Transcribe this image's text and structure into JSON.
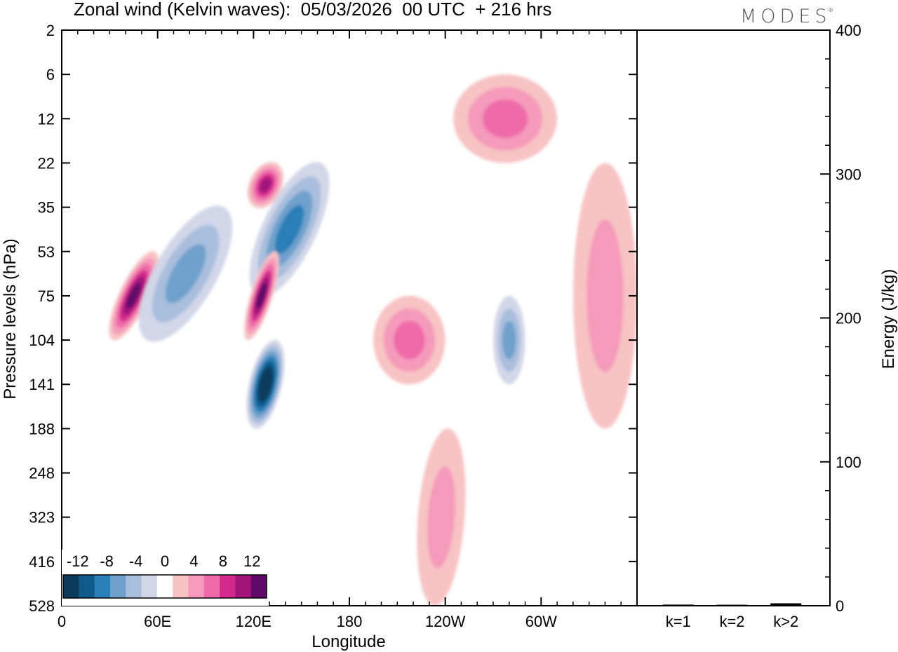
{
  "header": {
    "title": "Zonal wind (Kelvin waves):  05/03/2026  00 UTC  + 216 hrs",
    "brand": "MODES",
    "brand_mark": "®"
  },
  "chart_data": [
    {
      "type": "heatmap",
      "title": "Zonal wind (Kelvin waves):  05/03/2026  00 UTC  + 216 hrs",
      "xlabel": "Longitude",
      "ylabel": "Pressure levels (hPa)",
      "x_ticks": [
        "0",
        "60E",
        "120E",
        "180",
        "120W",
        "60W"
      ],
      "x_tick_degrees": [
        0,
        60,
        120,
        180,
        240,
        300
      ],
      "xlim": [
        0,
        360
      ],
      "y_ticks": [
        "2",
        "6",
        "12",
        "22",
        "35",
        "53",
        "75",
        "104",
        "141",
        "188",
        "248",
        "323",
        "416",
        "528"
      ],
      "y_scale": "model levels (top 2 hPa to bottom 528 hPa)",
      "colorbar": {
        "labels": [
          "-12",
          "-8",
          "-4",
          "0",
          "4",
          "8",
          "12"
        ],
        "bounds": [
          -14,
          -12,
          -10,
          -8,
          -6,
          -4,
          -2,
          2,
          4,
          6,
          8,
          10,
          12,
          14
        ],
        "colors": [
          "#0b3a5b",
          "#0e5a8a",
          "#2a7fb8",
          "#6fa0cc",
          "#a9bedd",
          "#d2d6e8",
          "#ffffff",
          "#f7c3c3",
          "#f59aba",
          "#ee6aa8",
          "#d22a8c",
          "#a1147a",
          "#5e0868"
        ],
        "placement": "bottom-left"
      },
      "features": [
        {
          "kind": "positive",
          "max": 12,
          "lon": [
            25,
            65
          ],
          "level": [
            "53",
            "104"
          ]
        },
        {
          "kind": "negative",
          "max": -6,
          "lon": [
            35,
            120
          ],
          "level": [
            "35",
            "104"
          ]
        },
        {
          "kind": "positive",
          "max": 10,
          "lon": [
            105,
            150
          ],
          "level": [
            "22",
            "35"
          ]
        },
        {
          "kind": "negative",
          "max": -8,
          "lon": [
            105,
            180
          ],
          "level": [
            "22",
            "75"
          ]
        },
        {
          "kind": "positive",
          "max": 12,
          "lon": [
            110,
            140
          ],
          "level": [
            "53",
            "104"
          ]
        },
        {
          "kind": "negative",
          "max": -14,
          "lon": [
            105,
            150
          ],
          "level": [
            "104",
            "188"
          ]
        },
        {
          "kind": "positive",
          "max": 6,
          "lon": [
            195,
            240
          ],
          "level": [
            "75",
            "141"
          ]
        },
        {
          "kind": "positive",
          "max": 4,
          "lon": [
            205,
            270
          ],
          "level": [
            "188",
            "528"
          ]
        },
        {
          "kind": "positive",
          "max": 6,
          "lon": [
            245,
            310
          ],
          "level": [
            "6",
            "22"
          ]
        },
        {
          "kind": "negative",
          "max": -6,
          "lon": [
            270,
            290
          ],
          "level": [
            "75",
            "141"
          ]
        },
        {
          "kind": "positive",
          "max": 4,
          "lon": [
            320,
            360
          ],
          "level": [
            "22",
            "188"
          ]
        }
      ]
    },
    {
      "type": "bar",
      "title": "",
      "ylabel": "Energy (J/kg)",
      "categories": [
        "k=1",
        "k=2",
        "k>2"
      ],
      "values": [
        0.3,
        0.2,
        1.2
      ],
      "ylim": [
        0,
        400
      ],
      "y_ticks": [
        "0",
        "100",
        "200",
        "300",
        "400"
      ],
      "y_tick_values": [
        0,
        100,
        200,
        300,
        400
      ],
      "y_minor_step": 20
    }
  ]
}
